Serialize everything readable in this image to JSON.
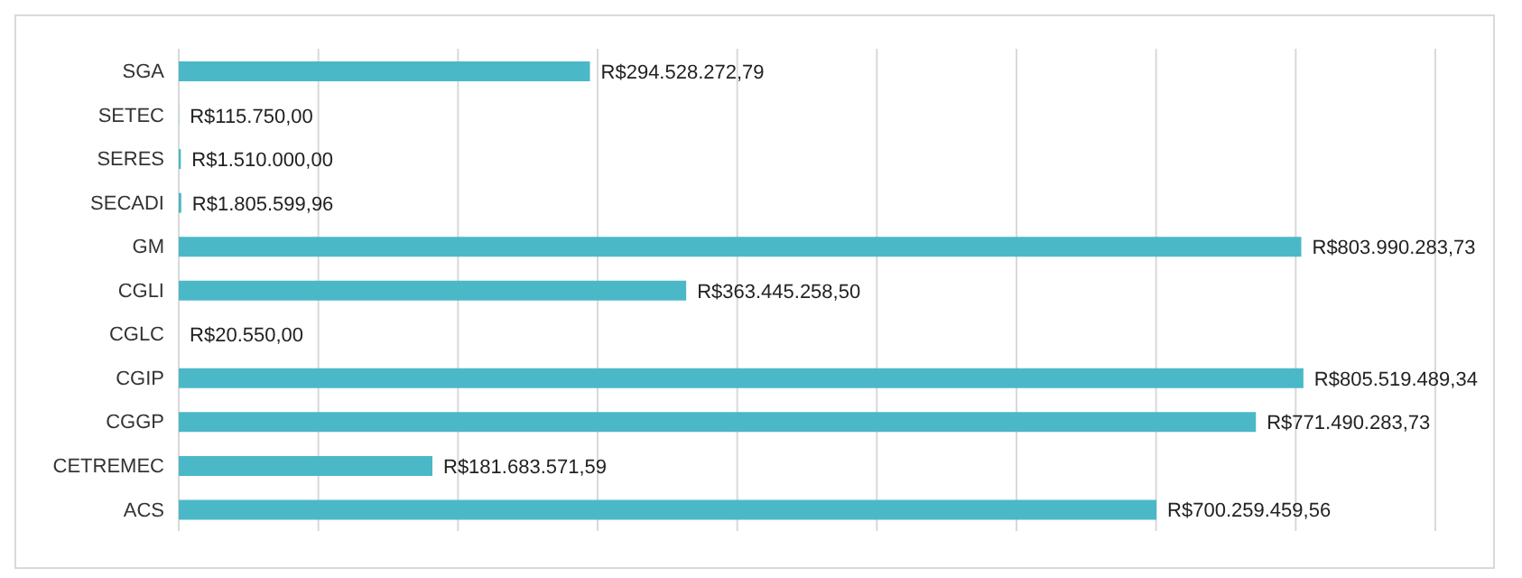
{
  "chart_data": {
    "type": "bar",
    "orientation": "horizontal",
    "categories": [
      "SGA",
      "SETEC",
      "SERES",
      "SECADI",
      "GM",
      "CGLI",
      "CGLC",
      "CGIP",
      "CGGP",
      "CETREMEC",
      "ACS"
    ],
    "values": [
      294528272.79,
      115750.0,
      1510000.0,
      1805599.96,
      803990283.73,
      363445258.5,
      20550.0,
      805519489.34,
      771490283.73,
      181683571.59,
      700259459.56
    ],
    "value_labels": [
      "R$294.528.272,79",
      "R$115.750,00",
      "R$1.510.000,00",
      "R$1.805.599,96",
      "R$803.990.283,73",
      "R$363.445.258,50",
      "R$20.550,00",
      "R$805.519.489,34",
      "R$771.490.283,73",
      "R$181.683.571,59",
      "R$700.259.459,56"
    ],
    "color": "#4bb8c8",
    "xlim": [
      0,
      900000000
    ],
    "tick_labels": "y",
    "grid": "x"
  }
}
